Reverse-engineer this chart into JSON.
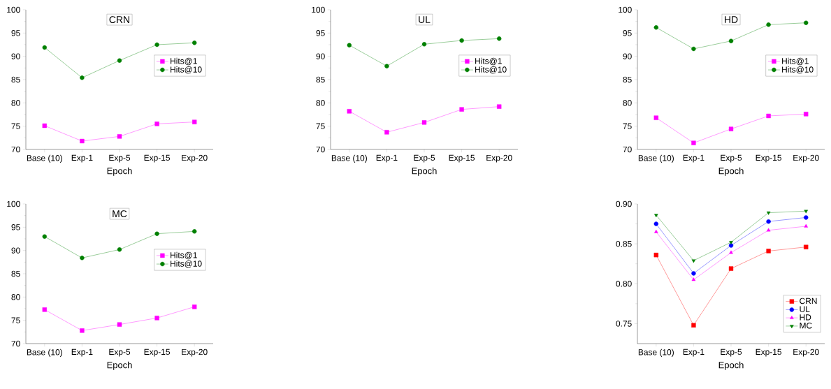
{
  "chart_data": [
    {
      "type": "line",
      "title": "CRN",
      "xlabel": "Epoch",
      "categories": [
        "Base (10)",
        "Exp-1",
        "Exp-5",
        "Exp-15",
        "Exp-20"
      ],
      "ylim": [
        70,
        100
      ],
      "yticks": [
        70,
        75,
        80,
        85,
        90,
        95,
        100
      ],
      "legend": "right",
      "series": [
        {
          "name": "Hits@1",
          "color": "#ff00ff",
          "marker": "square",
          "values": [
            75.1,
            71.8,
            72.8,
            75.5,
            75.9
          ]
        },
        {
          "name": "Hits@10",
          "color": "#008000",
          "marker": "circle",
          "values": [
            91.9,
            85.4,
            89.1,
            92.5,
            92.9
          ]
        }
      ]
    },
    {
      "type": "line",
      "title": "UL",
      "xlabel": "Epoch",
      "categories": [
        "Base (10)",
        "Exp-1",
        "Exp-5",
        "Exp-15",
        "Exp-20"
      ],
      "ylim": [
        70,
        100
      ],
      "yticks": [
        70,
        75,
        80,
        85,
        90,
        95,
        100
      ],
      "legend": "right",
      "series": [
        {
          "name": "Hits@1",
          "color": "#ff00ff",
          "marker": "square",
          "values": [
            78.2,
            73.7,
            75.8,
            78.6,
            79.2
          ]
        },
        {
          "name": "Hits@10",
          "color": "#008000",
          "marker": "circle",
          "values": [
            92.4,
            87.9,
            92.6,
            93.4,
            93.8
          ]
        }
      ]
    },
    {
      "type": "line",
      "title": "HD",
      "xlabel": "Epoch",
      "categories": [
        "Base (10)",
        "Exp-1",
        "Exp-5",
        "Exp-15",
        "Exp-20"
      ],
      "ylim": [
        70,
        100
      ],
      "yticks": [
        70,
        75,
        80,
        85,
        90,
        95,
        100
      ],
      "legend": "right",
      "series": [
        {
          "name": "Hits@1",
          "color": "#ff00ff",
          "marker": "square",
          "values": [
            76.8,
            71.4,
            74.4,
            77.2,
            77.6
          ]
        },
        {
          "name": "Hits@10",
          "color": "#008000",
          "marker": "circle",
          "values": [
            96.2,
            91.6,
            93.3,
            96.8,
            97.2
          ]
        }
      ]
    },
    {
      "type": "line",
      "title": "MC",
      "xlabel": "Epoch",
      "categories": [
        "Base (10)",
        "Exp-1",
        "Exp-5",
        "Exp-15",
        "Exp-20"
      ],
      "ylim": [
        70,
        100
      ],
      "yticks": [
        70,
        75,
        80,
        85,
        90,
        95,
        100
      ],
      "legend": "right",
      "series": [
        {
          "name": "Hits@1",
          "color": "#ff00ff",
          "marker": "square",
          "values": [
            77.3,
            72.8,
            74.1,
            75.5,
            77.9
          ]
        },
        {
          "name": "Hits@10",
          "color": "#008000",
          "marker": "circle",
          "values": [
            93.0,
            88.4,
            90.2,
            93.6,
            94.1
          ]
        }
      ]
    },
    {
      "type": "line",
      "xlabel": "Epoch",
      "categories": [
        "Base (10)",
        "Exp-1",
        "Exp-5",
        "Exp-15",
        "Exp-20"
      ],
      "ylim": [
        0.725,
        0.9
      ],
      "yticks": [
        0.75,
        {
          "value": 0.8,
          "label": "0.80"
        },
        0.85,
        {
          "value": 0.9,
          "label": "0.90"
        }
      ],
      "legend": "bottom right",
      "series": [
        {
          "name": "CRN",
          "color": "#ff0000",
          "marker": "square",
          "values": [
            0.836,
            0.748,
            0.819,
            0.841,
            0.846
          ]
        },
        {
          "name": "UL",
          "color": "#0000ff",
          "marker": "circle",
          "values": [
            0.875,
            0.813,
            0.848,
            0.878,
            0.883
          ]
        },
        {
          "name": "HD",
          "color": "#ff00ff",
          "marker": "triangle",
          "values": [
            0.865,
            0.805,
            0.839,
            0.867,
            0.872
          ]
        },
        {
          "name": "MC",
          "color": "#008000",
          "marker": "triangle down",
          "values": [
            0.886,
            0.829,
            0.852,
            0.889,
            0.891
          ]
        }
      ]
    }
  ]
}
